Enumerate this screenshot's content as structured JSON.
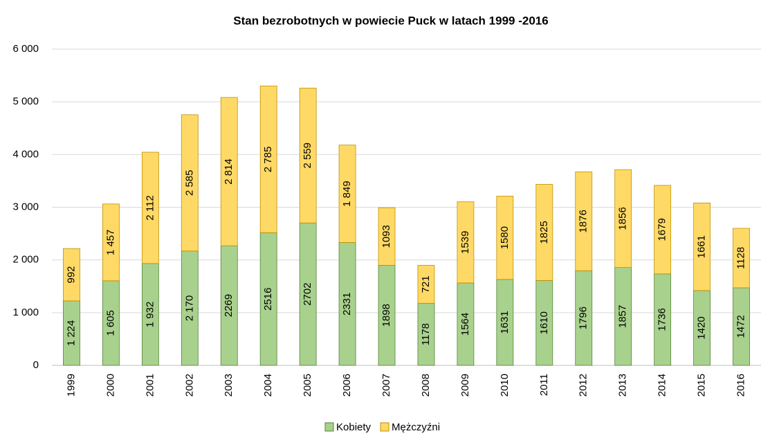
{
  "chart_data": {
    "type": "stacked_bar",
    "title": "Stan bezrobotnych w powiecie Puck w latach 1999 -2016",
    "categories": [
      "1999",
      "2000",
      "2001",
      "2002",
      "2003",
      "2004",
      "2005",
      "2006",
      "2007",
      "2008",
      "2009",
      "2010",
      "2011",
      "2012",
      "2013",
      "2014",
      "2015",
      "2016"
    ],
    "series": [
      {
        "name": "Kobiety",
        "color": "#a9d18e",
        "values": [
          1224,
          1605,
          1932,
          2170,
          2269,
          2516,
          2702,
          2331,
          1898,
          1178,
          1564,
          1631,
          1610,
          1796,
          1857,
          1736,
          1420,
          1472
        ],
        "value_labels": [
          "1 224",
          "1 605",
          "1 932",
          "2 170",
          "2269",
          "2516",
          "2702",
          "2331",
          "1898",
          "1178",
          "1564",
          "1631",
          "1610",
          "1796",
          "1857",
          "1736",
          "1420",
          "1472"
        ]
      },
      {
        "name": "Mężczyźni",
        "color": "#ffd966",
        "values": [
          992,
          1457,
          2112,
          2585,
          2814,
          2785,
          2559,
          1849,
          1093,
          721,
          1539,
          1580,
          1825,
          1876,
          1856,
          1679,
          1661,
          1128
        ],
        "value_labels": [
          "992",
          "1 457",
          "2 112",
          "2 585",
          "2 814",
          "2 785",
          "2 559",
          "1 849",
          "1093",
          "721",
          "1539",
          "1580",
          "1825",
          "1876",
          "1856",
          "1679",
          "1661",
          "1128"
        ]
      }
    ],
    "ylim": [
      0,
      6000
    ],
    "yticks": [
      0,
      {
        "value": 1000,
        "label": "1 000"
      },
      {
        "value": 2000,
        "label": "2 000"
      },
      {
        "value": 3000,
        "label": "3 000"
      },
      {
        "value": 4000,
        "label": "4 000"
      },
      {
        "value": 5000,
        "label": "5 000"
      },
      {
        "value": 6000,
        "label": "6 000"
      }
    ],
    "grid": true,
    "legend": "bottom"
  }
}
